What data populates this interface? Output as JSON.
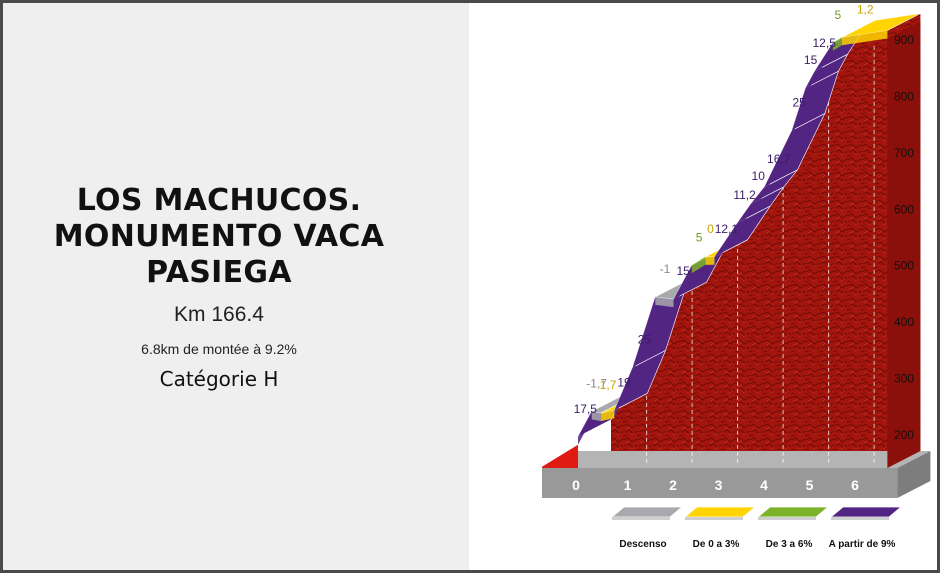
{
  "climb_info": {
    "title_lines": [
      "LOS MACHUCOS.",
      "MONUMENTO VACA",
      "PASIEGA"
    ],
    "km": "Km 166.4",
    "climb": "6.8km de montée à 9.2%",
    "category": "Catégorie H"
  },
  "chart_data": {
    "type": "area",
    "title": "",
    "xlabel": "",
    "ylabel": "",
    "x_ticks": [
      "0",
      "1",
      "2",
      "3",
      "4",
      "5",
      "6"
    ],
    "y_ticks": [
      "200",
      "300",
      "400",
      "500",
      "600",
      "700",
      "800",
      "900"
    ],
    "xlim": [
      0,
      6.8
    ],
    "ylim": [
      200,
      900
    ],
    "segments": [
      {
        "x0": 0.0,
        "x1": 0.3,
        "alt0": 195,
        "alt1": 240,
        "gradient": "17,5",
        "class": "steep"
      },
      {
        "x0": 0.3,
        "x1": 0.5,
        "alt0": 240,
        "alt1": 237,
        "gradient": "-1,7",
        "class": "descent"
      },
      {
        "x0": 0.5,
        "x1": 0.8,
        "alt0": 237,
        "alt1": 242,
        "gradient": "1,7",
        "class": "easy"
      },
      {
        "x0": 0.8,
        "x1": 1.2,
        "alt0": 242,
        "alt1": 318,
        "gradient": "19",
        "class": "steep"
      },
      {
        "x0": 1.2,
        "x1": 1.7,
        "alt0": 318,
        "alt1": 443,
        "gradient": "25",
        "class": "steep"
      },
      {
        "x0": 1.7,
        "x1": 2.1,
        "alt0": 443,
        "alt1": 439,
        "gradient": "-1",
        "class": "descent"
      },
      {
        "x0": 2.1,
        "x1": 2.5,
        "alt0": 439,
        "alt1": 499,
        "gradient": "15",
        "class": "steep"
      },
      {
        "x0": 2.5,
        "x1": 2.8,
        "alt0": 499,
        "alt1": 514,
        "gradient": "5",
        "class": "moderate"
      },
      {
        "x0": 2.8,
        "x1": 3.0,
        "alt0": 514,
        "alt1": 514,
        "gradient": "0",
        "class": "easy"
      },
      {
        "x0": 3.0,
        "x1": 3.5,
        "alt0": 514,
        "alt1": 574,
        "gradient": "12,1",
        "class": "steep"
      },
      {
        "x0": 3.5,
        "x1": 3.8,
        "alt0": 574,
        "alt1": 608,
        "gradient": "11,2",
        "class": "steep"
      },
      {
        "x0": 3.8,
        "x1": 4.1,
        "alt0": 608,
        "alt1": 638,
        "gradient": "10",
        "class": "steep"
      },
      {
        "x0": 4.1,
        "x1": 4.7,
        "alt0": 638,
        "alt1": 738,
        "gradient": "16,7",
        "class": "steep"
      },
      {
        "x0": 4.7,
        "x1": 5.0,
        "alt0": 738,
        "alt1": 813,
        "gradient": "25",
        "class": "steep"
      },
      {
        "x0": 5.0,
        "x1": 5.2,
        "alt0": 813,
        "alt1": 843,
        "gradient": "15",
        "class": "steep"
      },
      {
        "x0": 5.2,
        "x1": 5.6,
        "alt0": 843,
        "alt1": 893,
        "gradient": "12,5",
        "class": "steep"
      },
      {
        "x0": 5.6,
        "x1": 5.8,
        "alt0": 893,
        "alt1": 903,
        "gradient": "5",
        "class": "moderate"
      },
      {
        "x0": 5.8,
        "x1": 6.8,
        "alt0": 903,
        "alt1": 915,
        "gradient": "1,2",
        "class": "easy"
      }
    ],
    "legend": [
      {
        "key": "descent",
        "label": "Descenso",
        "color": "#a9a8ad"
      },
      {
        "key": "easy",
        "label": "De 0 a 3%",
        "color": "#ffd400"
      },
      {
        "key": "moderate",
        "label": "De 3 a 6%",
        "color": "#7cb32a"
      },
      {
        "key": "steep",
        "label": "A partir de 9%",
        "color": "#532583"
      }
    ],
    "label_colors": {
      "descent": "#8a8a8e",
      "easy": "#c9a400",
      "moderate": "#6e9e22",
      "steep": "#3a1b6a"
    },
    "fill_color": "#a3150d",
    "base_color": "#999999",
    "grid": false,
    "legend_position": "bottom"
  }
}
